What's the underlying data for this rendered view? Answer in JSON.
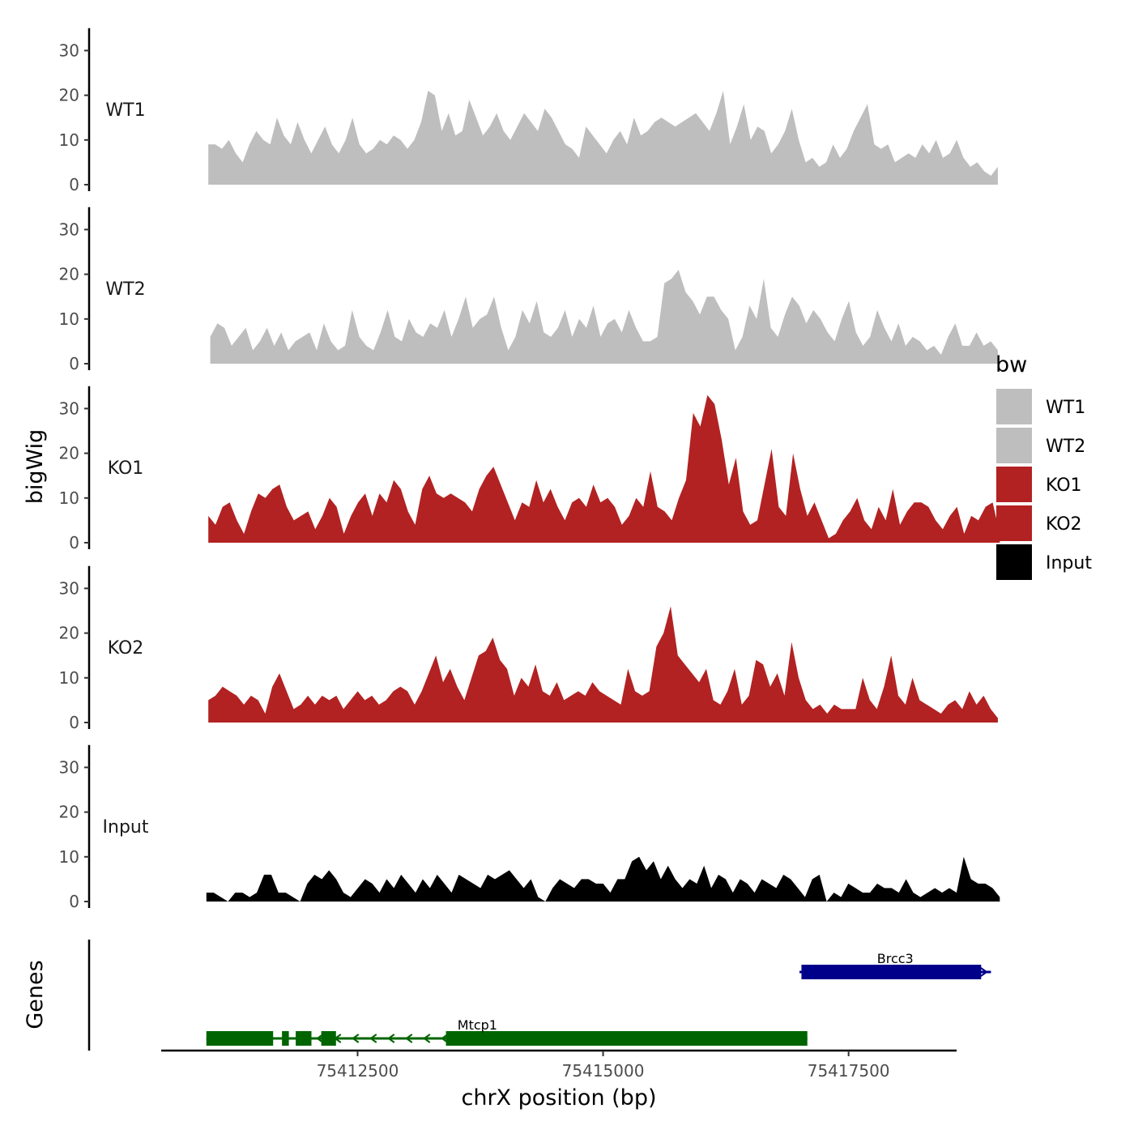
{
  "chart_data": {
    "type": "area",
    "x_range": [
      75410500,
      75418600
    ],
    "ylim": [
      0,
      35
    ],
    "y_ticks": [
      0,
      10,
      20,
      30
    ],
    "ylabel": "bigWig",
    "genes_label": "Genes",
    "xlabel": "chrX position (bp)",
    "x_ticks": [
      75412500,
      75415000,
      75417500
    ],
    "legend": {
      "title": "bw",
      "entries": [
        {
          "label": "WT1",
          "color": "#bebebe"
        },
        {
          "label": "WT2",
          "color": "#bebebe"
        },
        {
          "label": "KO1",
          "color": "#b22222"
        },
        {
          "label": "KO2",
          "color": "#b22222"
        },
        {
          "label": "Input",
          "color": "#000000"
        }
      ]
    },
    "series": [
      {
        "name": "WT1",
        "color": "#bebebe",
        "x_start": 75410980,
        "x_end": 75419020,
        "values": [
          9,
          9,
          8,
          10,
          7,
          5,
          9,
          12,
          10,
          9,
          15,
          11,
          9,
          14,
          10,
          7,
          10,
          13,
          9,
          7,
          10,
          15,
          9,
          7,
          8,
          10,
          9,
          11,
          10,
          8,
          10,
          14,
          21,
          20,
          12,
          16,
          11,
          12,
          19,
          15,
          11,
          13,
          16,
          12,
          10,
          13,
          16,
          14,
          12,
          17,
          15,
          12,
          9,
          8,
          6,
          13,
          11,
          9,
          7,
          10,
          12,
          9,
          15,
          11,
          12,
          14,
          15,
          14,
          13,
          14,
          15,
          16,
          14,
          12,
          16,
          21,
          9,
          13,
          18,
          10,
          13,
          12,
          7,
          9,
          12,
          17,
          10,
          5,
          6,
          4,
          5,
          9,
          6,
          8,
          12,
          15,
          18,
          9,
          8,
          9,
          5,
          6,
          7,
          6,
          9,
          7,
          10,
          6,
          7,
          10,
          6,
          4,
          5,
          3,
          2,
          4
        ]
      },
      {
        "name": "WT2",
        "color": "#bebebe",
        "x_start": 75411000,
        "x_end": 75419020,
        "values": [
          6,
          9,
          8,
          4,
          6,
          8,
          3,
          5,
          8,
          4,
          7,
          3,
          5,
          6,
          7,
          3,
          9,
          5,
          3,
          4,
          12,
          6,
          4,
          3,
          7,
          12,
          6,
          5,
          10,
          7,
          6,
          9,
          8,
          12,
          6,
          10,
          15,
          8,
          10,
          11,
          15,
          8,
          3,
          6,
          12,
          9,
          14,
          7,
          6,
          8,
          12,
          6,
          10,
          8,
          13,
          6,
          9,
          10,
          7,
          12,
          8,
          5,
          5,
          6,
          18,
          19,
          21,
          16,
          14,
          11,
          15,
          15,
          12,
          10,
          3,
          6,
          13,
          10,
          19,
          8,
          6,
          11,
          15,
          13,
          9,
          12,
          10,
          7,
          5,
          10,
          14,
          7,
          4,
          6,
          12,
          8,
          5,
          9,
          4,
          6,
          5,
          3,
          4,
          2,
          6,
          9,
          4,
          4,
          7,
          4,
          5,
          3
        ]
      },
      {
        "name": "KO1",
        "color": "#b22222",
        "x_start": 75410980,
        "x_end": 75419040,
        "values": [
          6,
          4,
          8,
          9,
          5,
          2,
          7,
          11,
          10,
          12,
          13,
          8,
          5,
          6,
          7,
          3,
          6,
          10,
          8,
          2,
          6,
          9,
          11,
          6,
          11,
          9,
          14,
          12,
          7,
          4,
          12,
          15,
          11,
          10,
          11,
          10,
          9,
          7,
          12,
          15,
          17,
          13,
          9,
          5,
          9,
          8,
          14,
          9,
          12,
          8,
          5,
          9,
          10,
          8,
          13,
          9,
          10,
          8,
          4,
          6,
          10,
          8,
          16,
          8,
          7,
          5,
          10,
          14,
          29,
          26,
          33,
          31,
          23,
          13,
          19,
          7,
          4,
          5,
          13,
          21,
          8,
          6,
          20,
          12,
          6,
          9,
          5,
          1,
          2,
          5,
          7,
          10,
          5,
          3,
          8,
          5,
          12,
          4,
          7,
          9,
          9,
          8,
          5,
          3,
          6,
          8,
          2,
          6,
          5,
          8,
          9,
          2
        ]
      },
      {
        "name": "KO2",
        "color": "#b22222",
        "x_start": 75410980,
        "x_end": 75419020,
        "values": [
          5,
          6,
          8,
          7,
          6,
          4,
          6,
          5,
          2,
          8,
          11,
          7,
          3,
          4,
          6,
          4,
          6,
          5,
          6,
          3,
          5,
          7,
          5,
          6,
          4,
          5,
          7,
          8,
          7,
          4,
          7,
          11,
          15,
          9,
          12,
          8,
          5,
          10,
          15,
          16,
          19,
          14,
          12,
          6,
          10,
          8,
          13,
          7,
          6,
          9,
          5,
          6,
          7,
          6,
          9,
          7,
          6,
          5,
          4,
          12,
          7,
          6,
          7,
          17,
          20,
          26,
          15,
          13,
          11,
          9,
          12,
          5,
          4,
          7,
          12,
          4,
          6,
          14,
          13,
          8,
          11,
          6,
          18,
          10,
          5,
          3,
          4,
          2,
          4,
          3,
          3,
          3,
          10,
          5,
          3,
          8,
          15,
          6,
          4,
          10,
          5,
          4,
          3,
          2,
          4,
          5,
          3,
          7,
          4,
          6,
          3,
          1
        ]
      },
      {
        "name": "Input",
        "color": "#000000",
        "x_start": 75410960,
        "x_end": 75419040,
        "values": [
          2,
          2,
          1,
          0,
          2,
          2,
          1,
          2,
          6,
          6,
          2,
          2,
          1,
          0,
          4,
          6,
          5,
          7,
          5,
          2,
          1,
          3,
          5,
          4,
          2,
          5,
          3,
          6,
          4,
          2,
          5,
          3,
          6,
          4,
          2,
          6,
          5,
          4,
          3,
          6,
          5,
          6,
          7,
          5,
          3,
          5,
          1,
          0,
          3,
          5,
          4,
          3,
          5,
          5,
          4,
          4,
          2,
          5,
          5,
          9,
          10,
          7,
          9,
          5,
          8,
          5,
          3,
          5,
          4,
          8,
          3,
          6,
          5,
          2,
          5,
          4,
          2,
          5,
          4,
          3,
          6,
          5,
          3,
          1,
          5,
          6,
          0,
          2,
          1,
          4,
          3,
          2,
          2,
          4,
          3,
          3,
          2,
          5,
          2,
          1,
          2,
          3,
          2,
          3,
          2,
          10,
          5,
          4,
          4,
          3,
          1
        ]
      }
    ],
    "genes": [
      {
        "name": "Mtcp1",
        "strand": "-",
        "color": "#006400",
        "start": 75410960,
        "end": 75417080,
        "exons": [
          [
            75410960,
            75411640
          ],
          [
            75411730,
            75411800
          ],
          [
            75411870,
            75412030
          ],
          [
            75412130,
            75412280
          ],
          [
            75413400,
            75417080
          ]
        ]
      },
      {
        "name": "Brcc3",
        "strand": "+",
        "color": "#00008b",
        "start": 75417000,
        "end": 75418950,
        "exons": [
          [
            75417020,
            75418850
          ]
        ]
      }
    ]
  }
}
